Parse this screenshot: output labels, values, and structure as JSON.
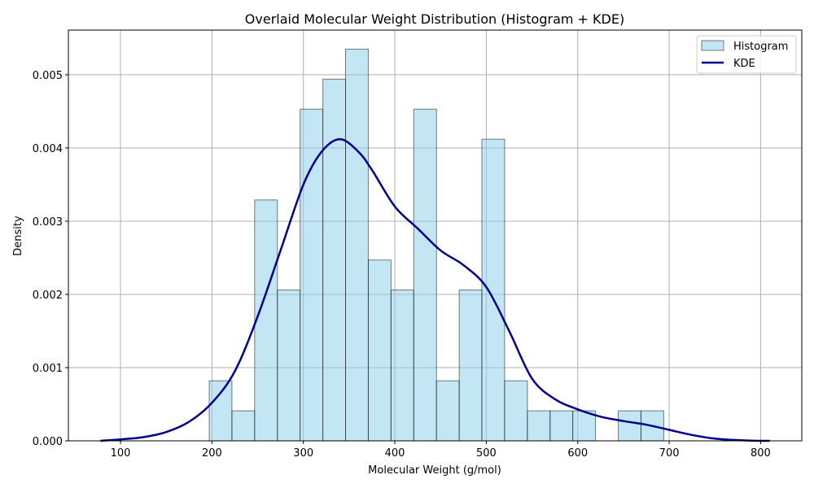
{
  "chart_data": {
    "type": "bar",
    "title": "Overlaid Molecular Weight Distribution (Histogram + KDE)",
    "xlabel": "Molecular Weight (g/mol)",
    "ylabel": "Density",
    "xlim": [
      43,
      845
    ],
    "ylim": [
      0,
      0.00561
    ],
    "xticks": [
      100,
      200,
      300,
      400,
      500,
      600,
      700,
      800
    ],
    "xtick_labels": [
      "100",
      "200",
      "300",
      "400",
      "500",
      "600",
      "700",
      "800"
    ],
    "yticks": [
      0,
      0.001,
      0.002,
      0.003,
      0.004,
      0.005
    ],
    "ytick_labels": [
      "0.000",
      "0.001",
      "0.002",
      "0.003",
      "0.004",
      "0.005"
    ],
    "grid": true,
    "legend": {
      "placement": "top-right",
      "entries": [
        "Histogram",
        "KDE"
      ]
    },
    "colors": {
      "bar_fill": "#87ceeb",
      "bar_edge": "#000000",
      "kde_line": "#00008b",
      "grid": "#b0b0b0"
    },
    "histogram": {
      "name": "Histogram",
      "bin_width": 24.85,
      "bins": [
        {
          "x0": 197.0,
          "value": 0.00082
        },
        {
          "x0": 221.9,
          "value": 0.00041
        },
        {
          "x0": 246.7,
          "value": 0.00329
        },
        {
          "x0": 271.6,
          "value": 0.00206
        },
        {
          "x0": 296.4,
          "value": 0.00453
        },
        {
          "x0": 321.3,
          "value": 0.00494
        },
        {
          "x0": 346.1,
          "value": 0.00535
        },
        {
          "x0": 371.0,
          "value": 0.00247
        },
        {
          "x0": 395.8,
          "value": 0.00206
        },
        {
          "x0": 420.7,
          "value": 0.00453
        },
        {
          "x0": 445.5,
          "value": 0.00082
        },
        {
          "x0": 470.4,
          "value": 0.00206
        },
        {
          "x0": 495.2,
          "value": 0.00412
        },
        {
          "x0": 520.1,
          "value": 0.00082
        },
        {
          "x0": 544.9,
          "value": 0.00041
        },
        {
          "x0": 569.8,
          "value": 0.00041
        },
        {
          "x0": 594.6,
          "value": 0.00041
        },
        {
          "x0": 619.5,
          "value": 0.0
        },
        {
          "x0": 644.3,
          "value": 0.00041
        },
        {
          "x0": 669.2,
          "value": 0.00041
        }
      ]
    },
    "kde": {
      "name": "KDE",
      "x": [
        78,
        100,
        125,
        150,
        175,
        200,
        225,
        250,
        275,
        300,
        320,
        340,
        360,
        375,
        400,
        425,
        450,
        475,
        500,
        525,
        550,
        575,
        600,
        625,
        650,
        675,
        700,
        725,
        750,
        775,
        800,
        810
      ],
      "y": [
        0.0,
        2e-05,
        5e-05,
        0.00012,
        0.00026,
        0.00052,
        0.00095,
        0.0017,
        0.0026,
        0.0035,
        0.00395,
        0.00412,
        0.00395,
        0.0037,
        0.0032,
        0.0029,
        0.0026,
        0.0024,
        0.0021,
        0.0015,
        0.00085,
        0.00057,
        0.00043,
        0.00033,
        0.00027,
        0.00022,
        0.00015,
        8e-05,
        3e-05,
        1e-05,
        0.0,
        0.0
      ]
    }
  }
}
